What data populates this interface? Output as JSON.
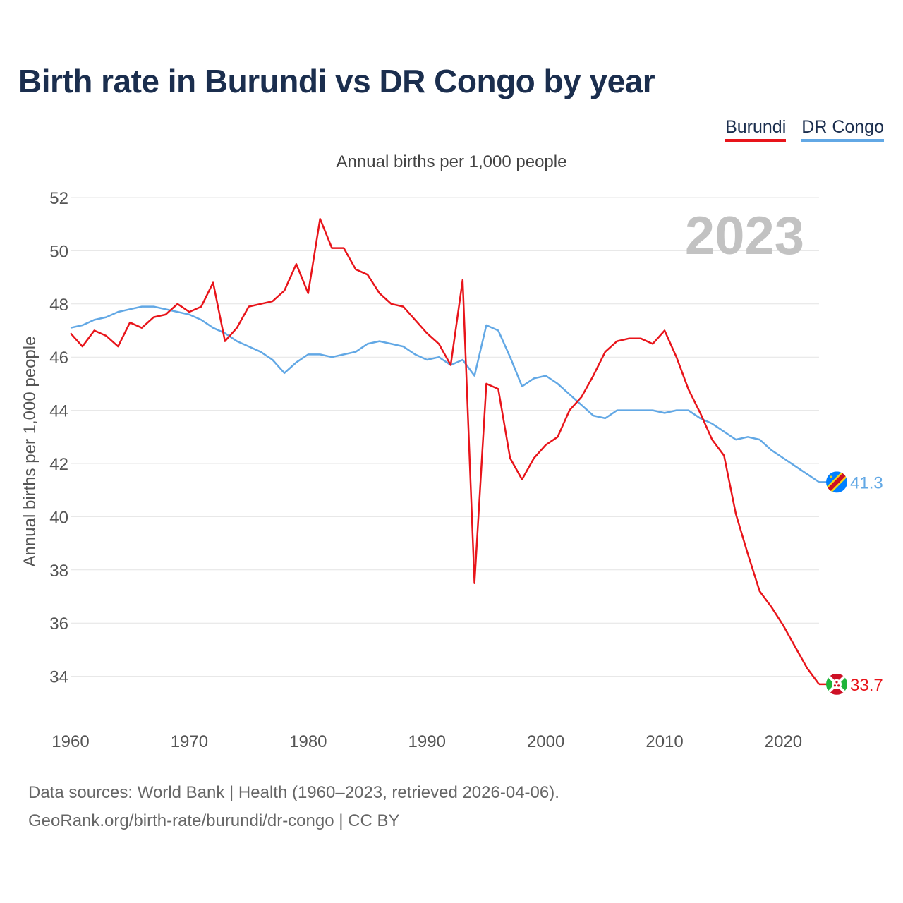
{
  "title": "Birth rate in Burundi vs DR Congo by year",
  "legend": [
    {
      "label": "Burundi",
      "color": "#e8141a"
    },
    {
      "label": "DR Congo",
      "color": "#62a8e5"
    }
  ],
  "subtitle": "Annual births per 1,000 people",
  "footer": {
    "line1": "Data sources: World Bank | Health (1960–2023, retrieved 2026-04-06).",
    "line2": "GeoRank.org/birth-rate/burundi/dr-congo | CC BY"
  },
  "chart_data": {
    "type": "line",
    "title": "Birth rate in Burundi vs DR Congo by year",
    "subtitle": "Annual births per 1,000 people",
    "xlabel": "",
    "ylabel": "Annual births per 1,000 people",
    "year_label": "2023",
    "xlim": [
      1960,
      2023
    ],
    "ylim": [
      32.5,
      52
    ],
    "x_ticks": [
      1960,
      1970,
      1980,
      1990,
      2000,
      2010,
      2020
    ],
    "y_ticks": [
      34,
      36,
      38,
      40,
      42,
      44,
      46,
      48,
      50,
      52
    ],
    "grid": true,
    "x": [
      1960,
      1961,
      1962,
      1963,
      1964,
      1965,
      1966,
      1967,
      1968,
      1969,
      1970,
      1971,
      1972,
      1973,
      1974,
      1975,
      1976,
      1977,
      1978,
      1979,
      1980,
      1981,
      1982,
      1983,
      1984,
      1985,
      1986,
      1987,
      1988,
      1989,
      1990,
      1991,
      1992,
      1993,
      1994,
      1995,
      1996,
      1997,
      1998,
      1999,
      2000,
      2001,
      2002,
      2003,
      2004,
      2005,
      2006,
      2007,
      2008,
      2009,
      2010,
      2011,
      2012,
      2013,
      2014,
      2015,
      2016,
      2017,
      2018,
      2019,
      2020,
      2021,
      2022,
      2023
    ],
    "series": [
      {
        "name": "Burundi",
        "color": "#e8141a",
        "end_label": "33.7",
        "flag_icon": "burundi-flag-icon",
        "values": [
          46.9,
          46.4,
          47.0,
          46.8,
          46.4,
          47.3,
          47.1,
          47.5,
          47.6,
          48.0,
          47.7,
          47.9,
          48.8,
          46.6,
          47.1,
          47.9,
          48.0,
          48.1,
          48.5,
          49.5,
          48.4,
          51.2,
          50.1,
          50.1,
          49.3,
          49.1,
          48.4,
          48.0,
          47.9,
          47.4,
          46.9,
          46.5,
          45.7,
          48.9,
          37.5,
          45.0,
          44.8,
          42.2,
          41.4,
          42.2,
          42.7,
          43.0,
          44.0,
          44.5,
          45.3,
          46.2,
          46.6,
          46.7,
          46.7,
          46.5,
          47.0,
          46.0,
          44.8,
          43.9,
          42.9,
          42.3,
          40.1,
          38.6,
          37.2,
          36.6,
          35.9,
          35.1,
          34.3,
          33.7
        ]
      },
      {
        "name": "DR Congo",
        "color": "#62a8e5",
        "end_label": "41.3",
        "flag_icon": "dr-congo-flag-icon",
        "values": [
          47.1,
          47.2,
          47.4,
          47.5,
          47.7,
          47.8,
          47.9,
          47.9,
          47.8,
          47.7,
          47.6,
          47.4,
          47.1,
          46.9,
          46.6,
          46.4,
          46.2,
          45.9,
          45.4,
          45.8,
          46.1,
          46.1,
          46.0,
          46.1,
          46.2,
          46.5,
          46.6,
          46.5,
          46.4,
          46.1,
          45.9,
          46.0,
          45.7,
          45.9,
          45.3,
          47.2,
          47.0,
          46.0,
          44.9,
          45.2,
          45.3,
          45.0,
          44.6,
          44.2,
          43.8,
          43.7,
          44.0,
          44.0,
          44.0,
          44.0,
          43.9,
          44.0,
          44.0,
          43.7,
          43.5,
          43.2,
          42.9,
          43.0,
          42.9,
          42.5,
          42.2,
          41.9,
          41.6,
          41.3
        ]
      }
    ]
  }
}
